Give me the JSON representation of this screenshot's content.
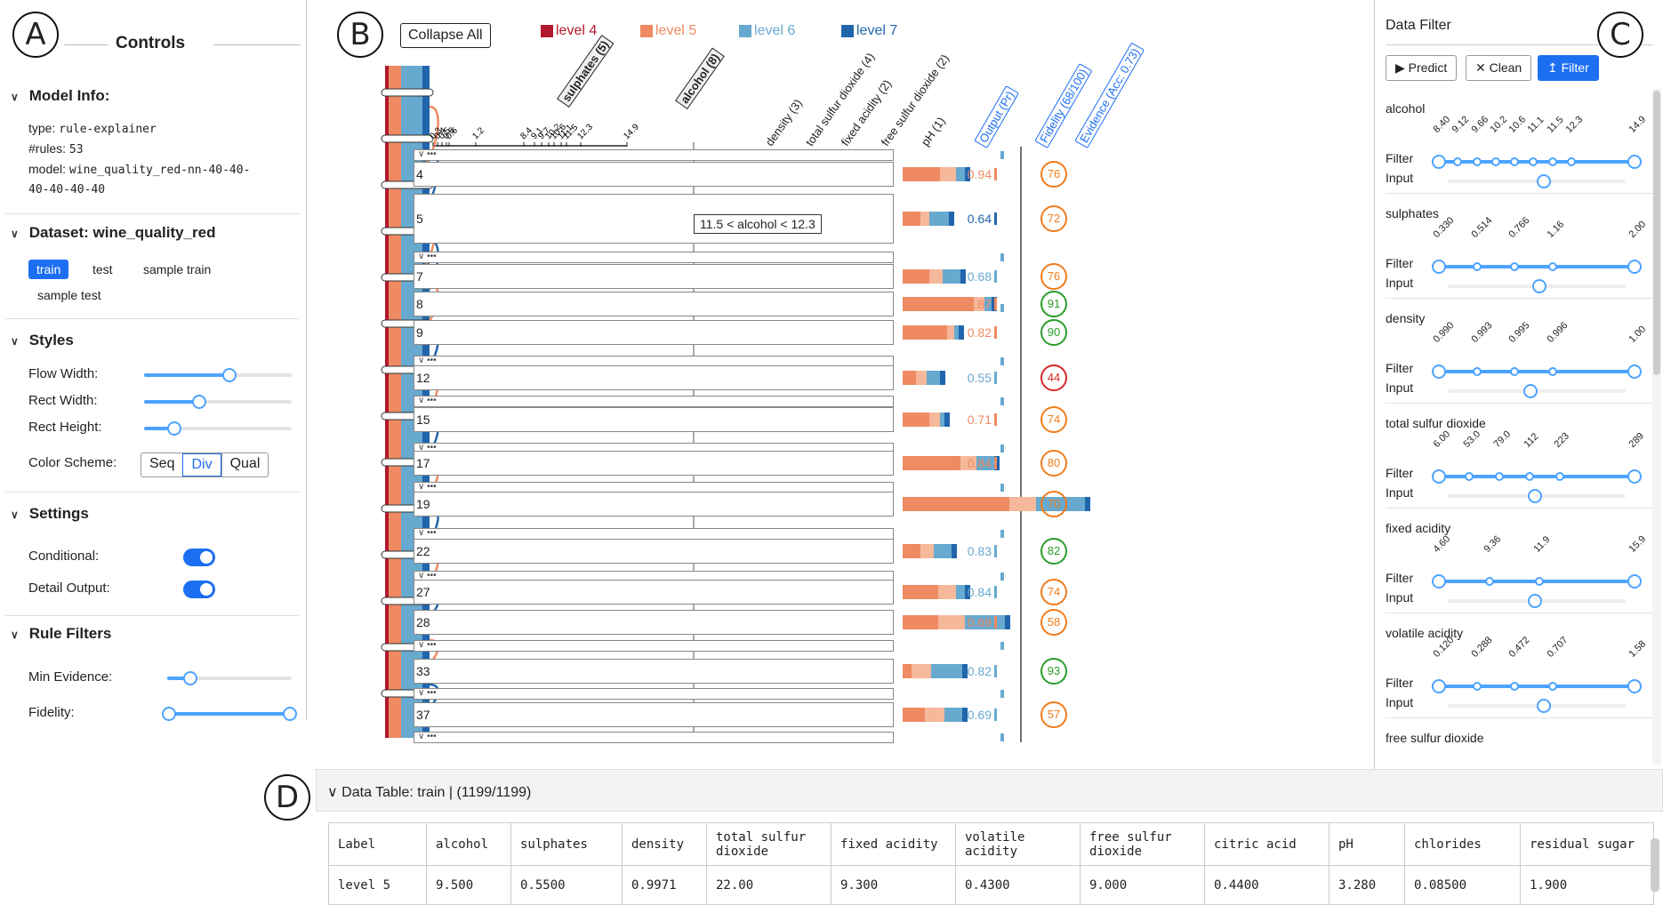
{
  "markers": {
    "a": "A",
    "b": "B",
    "c": "C",
    "d": "D"
  },
  "controls": {
    "title": "Controls",
    "model_info": {
      "header": "Model Info:",
      "type_k": "type:",
      "type_v": "rule-explainer",
      "rules_k": "#rules:",
      "rules_v": "53",
      "model_k": "model:",
      "model_v1": "wine_quality_red-nn-40-40-",
      "model_v2": "40-40-40-40"
    },
    "dataset": {
      "header": "Dataset: wine_quality_red",
      "tabs": [
        "train",
        "test",
        "sample train",
        "sample test"
      ]
    },
    "styles": {
      "header": "Styles",
      "flow_width": "Flow Width:",
      "rect_width": "Rect Width:",
      "rect_height": "Rect Height:",
      "color_scheme": "Color Scheme:",
      "schemes": [
        "Seq",
        "Div",
        "Qual"
      ],
      "flow_width_value": 0.6,
      "rect_width_value": 0.38,
      "rect_height_value": 0.2
    },
    "settings": {
      "header": "Settings",
      "conditional": "Conditional:",
      "detail_output": "Detail Output:",
      "conditional_on": true,
      "detail_output_on": true
    },
    "rule_filters": {
      "header": "Rule Filters",
      "min_evidence": "Min Evidence:",
      "fidelity": "Fidelity:",
      "min_evidence_value": 0.18,
      "fidelity_range": [
        0,
        1
      ]
    }
  },
  "rules_view": {
    "collapse_all": "Collapse All",
    "legend": [
      {
        "label": "level 4",
        "color": "#b2182b"
      },
      {
        "label": "level 5",
        "color": "#ef8a62"
      },
      {
        "label": "level 6",
        "color": "#67a9cf"
      },
      {
        "label": "level 7",
        "color": "#2166ac"
      }
    ],
    "features": [
      "sulphates (5)",
      "alcohol (8)",
      "density (3)",
      "total sulfur dioxide (4)",
      "fixed acidity (2)",
      "free sulfur dioxide (2)",
      "pH (1)"
    ],
    "column_heads": [
      "Output (Pr)",
      "Fidelity (68/100)",
      "Evidence (Acc: 0.73)"
    ],
    "axis_ticks": [
      "0.3",
      "0.4",
      "0.5",
      "0.6",
      "0.6",
      "1.2",
      "8.4",
      "9.1",
      "9.7",
      "10.2",
      "10.6",
      "11.1",
      "11.5",
      "12.3",
      "14.9"
    ],
    "tooltip": "11.5 < alcohol < 12.3",
    "rows": [
      {
        "id": "4",
        "out": "0.94",
        "out_color": "#ef8a62",
        "fid": "76",
        "fid_color": "#f07c1c"
      },
      {
        "id": "5",
        "out": "0.64",
        "out_color": "#2166ac",
        "fid": "72",
        "fid_color": "#f07c1c"
      },
      {
        "id": "7",
        "out": "0.68",
        "out_color": "#67a9cf",
        "fid": "76",
        "fid_color": "#f07c1c"
      },
      {
        "id": "8",
        "out": "0.87",
        "out_color": "#ef8a62",
        "fid": "91",
        "fid_color": "#2a9d2a"
      },
      {
        "id": "9",
        "out": "0.82",
        "out_color": "#ef8a62",
        "fid": "90",
        "fid_color": "#2a9d2a"
      },
      {
        "id": "12",
        "out": "0.55",
        "out_color": "#67a9cf",
        "fid": "44",
        "fid_color": "#d62728"
      },
      {
        "id": "15",
        "out": "0.71",
        "out_color": "#ef8a62",
        "fid": "74",
        "fid_color": "#f07c1c"
      },
      {
        "id": "17",
        "out": "0.84",
        "out_color": "#ef8a62",
        "fid": "80",
        "fid_color": "#f07c1c"
      },
      {
        "id": "19",
        "out": "0.76",
        "out_color": "#ef8a62",
        "fid": "70",
        "fid_color": "#f07c1c"
      },
      {
        "id": "22",
        "out": "0.83",
        "out_color": "#67a9cf",
        "fid": "82",
        "fid_color": "#2a9d2a"
      },
      {
        "id": "27",
        "out": "0.84",
        "out_color": "#67a9cf",
        "fid": "74",
        "fid_color": "#f07c1c"
      },
      {
        "id": "28",
        "out": "0.69",
        "out_color": "#ef8a62",
        "fid": "58",
        "fid_color": "#f07c1c"
      },
      {
        "id": "33",
        "out": "0.82",
        "out_color": "#67a9cf",
        "fid": "93",
        "fid_color": "#2a9d2a"
      },
      {
        "id": "37",
        "out": "0.69",
        "out_color": "#67a9cf",
        "fid": "57",
        "fid_color": "#f07c1c"
      }
    ]
  },
  "data_filter": {
    "title": "Data Filter",
    "predict": "Predict",
    "clean": "Clean",
    "filter": "Filter",
    "filter_label": "Filter",
    "input_label": "Input",
    "features": [
      {
        "name": "alcohol",
        "ticks": [
          "8.40",
          "9.12",
          "9.66",
          "10.2",
          "10.6",
          "11.1",
          "11.5",
          "12.3",
          "14.9"
        ]
      },
      {
        "name": "sulphates",
        "ticks": [
          "0.330",
          "0.514",
          "0.766",
          "1.16",
          "2.00"
        ]
      },
      {
        "name": "density",
        "ticks": [
          "0.990",
          "0.993",
          "0.995",
          "0.996",
          "1.00"
        ]
      },
      {
        "name": "total sulfur dioxide",
        "ticks": [
          "6.00",
          "53.0",
          "79.0",
          "112",
          "223",
          "289"
        ]
      },
      {
        "name": "fixed acidity",
        "ticks": [
          "4.60",
          "9.36",
          "11.9",
          "15.9"
        ]
      },
      {
        "name": "volatile acidity",
        "ticks": [
          "0.120",
          "0.288",
          "0.472",
          "0.707",
          "1.58"
        ]
      },
      {
        "name": "free sulfur dioxide",
        "ticks": []
      }
    ]
  },
  "data_table": {
    "header": "Data Table: train | (1199/1199)",
    "columns": [
      "Label",
      "alcohol",
      "sulphates",
      "density",
      "total sulfur dioxide",
      "fixed acidity",
      "volatile acidity",
      "free sulfur dioxide",
      "citric acid",
      "pH",
      "chlorides",
      "residual sugar"
    ],
    "rows": [
      [
        "level 5",
        "9.500",
        "0.5500",
        "0.9971",
        "22.00",
        "9.300",
        "0.4300",
        "9.000",
        "0.4400",
        "3.280",
        "0.08500",
        "1.900"
      ]
    ]
  }
}
